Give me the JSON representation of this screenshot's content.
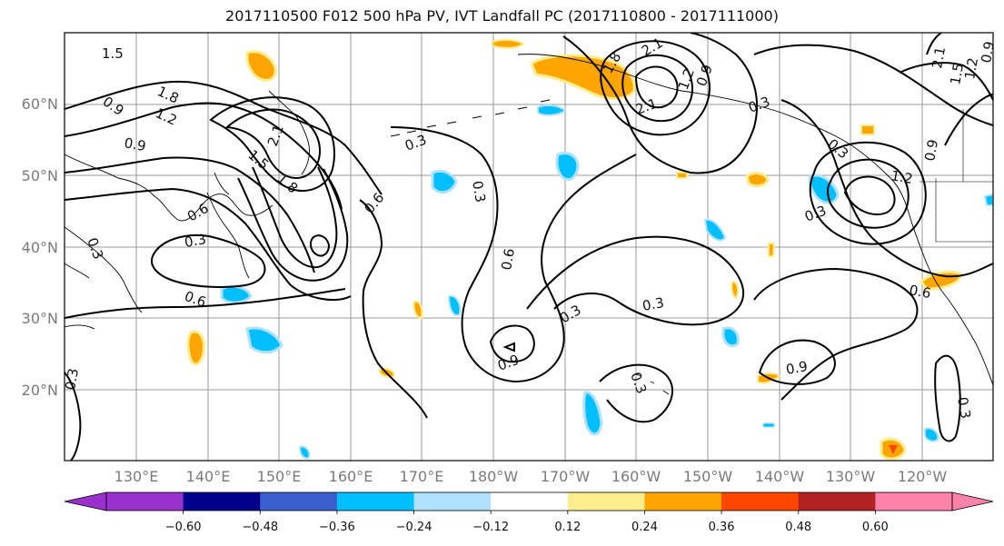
{
  "title": "2017110500 F012 500 hPa PV, IVT Landfall PC (2017110800 - 2017111000)",
  "lat_labels": [
    "60°N",
    "50°N",
    "40°N",
    "30°N",
    "20°N"
  ],
  "lon_labels": [
    "130°E",
    "140°E",
    "150°E",
    "160°E",
    "170°E",
    "180°W",
    "170°W",
    "160°W",
    "150°W",
    "140°W",
    "130°W",
    "120°W"
  ],
  "colorbar": {
    "colors": [
      "#9932cc",
      "#00008b",
      "#3a5fcd",
      "#00bfff",
      "#b0e2ff",
      "#ffffff",
      "#ffec8b",
      "#ffa500",
      "#ff4500",
      "#b22222",
      "#ff82ab"
    ],
    "tick_labels": [
      "−0.60",
      "−0.48",
      "−0.36",
      "−0.24",
      "−0.12",
      "0.12",
      "0.24",
      "0.36",
      "0.48",
      "0.60"
    ]
  },
  "contour_labels": [
    "1.5",
    "0.9",
    "1.8",
    "1.2",
    "0.9",
    "2.1",
    "1.5",
    "1.8",
    "0.6",
    "0.3",
    "0.3",
    "0.3",
    "0.3",
    "0.6",
    "0.6",
    "0.9",
    "0.3",
    "0.3",
    "2.1",
    "1.8",
    "2.1",
    "1.2",
    "0.9",
    "0.3",
    "2.1",
    "1.5",
    "1.2",
    "0.9",
    "0.3",
    "1.2",
    "0.9",
    "0.3",
    "0.6",
    "0.9",
    "0.3",
    "0.3",
    "0.6",
    "0.3"
  ],
  "legend_colors": {
    "positive": "#ffa500",
    "positive_light": "#ffec8b",
    "negative": "#00bfff",
    "negative_light": "#b0e2ff",
    "strong_positive": "#ff4500"
  }
}
